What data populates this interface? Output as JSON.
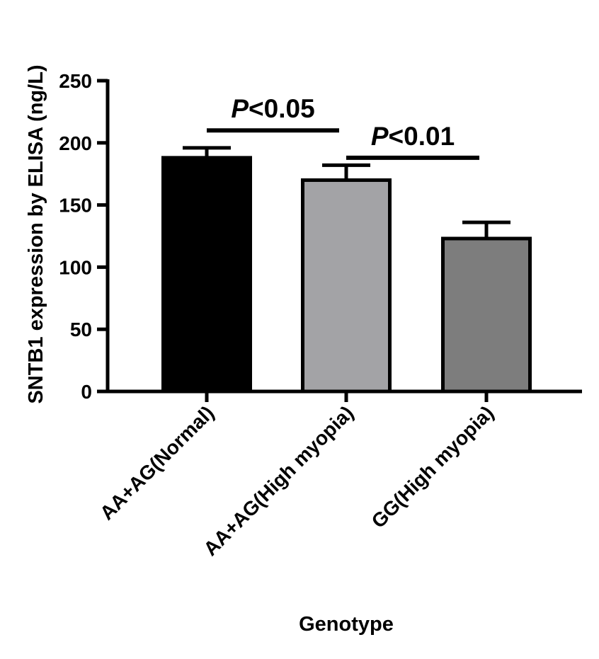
{
  "chart_data": {
    "type": "bar",
    "categories": [
      "AA+AG(Normal)",
      "AA+AG(High myopia)",
      "GG(High myopia)"
    ],
    "values": [
      188,
      170,
      123
    ],
    "error_upper": [
      196,
      182,
      136
    ],
    "bar_colors": [
      "#000000",
      "#a3a3a6",
      "#7d7d7d"
    ],
    "ylabel": "SNTB1 expression by ELISA (ng/L)",
    "xlabel": "Genotype",
    "ylim": [
      0,
      250
    ],
    "yticks": [
      0,
      50,
      100,
      150,
      200,
      250
    ],
    "annotations": [
      {
        "italic": "P",
        "text": "<0.05",
        "from": 0,
        "to": 1,
        "y": 210
      },
      {
        "italic": "P",
        "text": "<0.01",
        "from": 1,
        "to": 2,
        "y": 188
      }
    ]
  }
}
